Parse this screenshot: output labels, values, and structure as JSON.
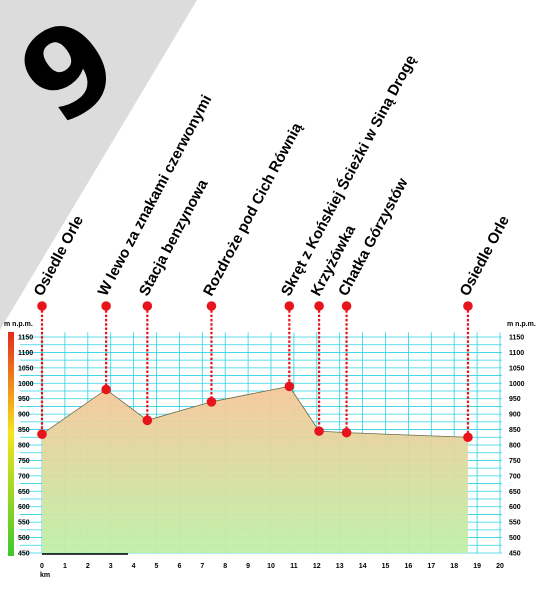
{
  "route": {
    "number": "9"
  },
  "axes": {
    "unit_left": "m n.p.m.",
    "unit_right": "m n.p.m.",
    "unit_x": "km"
  },
  "colors": {
    "grid": "#29d3e3",
    "banner": "#dcdcdc",
    "marker": "#e8141c",
    "gradient_top": "#e52a1c",
    "gradient_mid": "#f6e51c",
    "gradient_bottom": "#3ec82c",
    "fill_top": "#f7c79a",
    "fill_bottom": "#bff0a8"
  },
  "chart_data": {
    "type": "area",
    "title": "",
    "xlabel": "km",
    "ylabel": "m n.p.m.",
    "xlim": [
      0,
      20
    ],
    "ylim": [
      450,
      1150
    ],
    "x_ticks": [
      0,
      1,
      2,
      3,
      4,
      5,
      6,
      7,
      8,
      9,
      10,
      11,
      12,
      13,
      14,
      15,
      16,
      17,
      18,
      19,
      20
    ],
    "y_ticks": [
      1150,
      1100,
      1050,
      1000,
      950,
      900,
      850,
      800,
      750,
      700,
      650,
      600,
      550,
      500,
      450
    ],
    "grid": true,
    "profile": [
      {
        "km": 0,
        "elevation": 835
      },
      {
        "km": 2.8,
        "elevation": 980
      },
      {
        "km": 4.6,
        "elevation": 880
      },
      {
        "km": 7.4,
        "elevation": 940
      },
      {
        "km": 10.8,
        "elevation": 990
      },
      {
        "km": 12.1,
        "elevation": 845
      },
      {
        "km": 13.3,
        "elevation": 840
      },
      {
        "km": 18.6,
        "elevation": 825
      }
    ],
    "waypoints": [
      {
        "name": "Osiedle Orle",
        "km": 0,
        "elevation": 835
      },
      {
        "name": "W lewo za znakami czerwonymi",
        "km": 2.8,
        "elevation": 980
      },
      {
        "name": "Stacja benzynowa",
        "km": 4.6,
        "elevation": 880
      },
      {
        "name": "Rozdroże pod Cich Równią",
        "km": 7.4,
        "elevation": 940
      },
      {
        "name": "Skręt z Końskiej Ścieżki w Siną Drogę",
        "km": 10.8,
        "elevation": 990
      },
      {
        "name": "Krzyżówka",
        "km": 12.1,
        "elevation": 845
      },
      {
        "name": "Chatka Górzystów",
        "km": 13.3,
        "elevation": 840
      },
      {
        "name": "Osiedle Orle",
        "km": 18.6,
        "elevation": 825
      }
    ]
  }
}
